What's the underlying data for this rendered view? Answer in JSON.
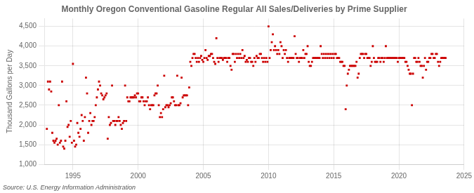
{
  "chart_data": {
    "type": "scatter",
    "title": "Monthly Oregon Conventional Gasoline Regular All Sales/Deliveries by Prime Supplier",
    "ylabel": "Thousand Gallons per Day",
    "source": "Source: U.S. Energy Information Administration",
    "color": "#cc0000",
    "marker": "square",
    "grid": true,
    "xlim": [
      1992.8,
      2025
    ],
    "xticks": [
      1995,
      2000,
      2005,
      2010,
      2015,
      2020,
      2025
    ],
    "ylim": [
      1000,
      4700
    ],
    "yticks": [
      {
        "value": 1000,
        "label": "1,000"
      },
      {
        "value": 1500,
        "label": "1,500"
      },
      {
        "value": 2000,
        "label": "2,000"
      },
      {
        "value": 2500,
        "label": "2,500"
      },
      {
        "value": 3000,
        "label": "3,000"
      },
      {
        "value": 3500,
        "label": "3,500"
      },
      {
        "value": 4000,
        "label": "4,000"
      },
      {
        "value": 4500,
        "label": "4,500"
      }
    ],
    "x": [
      1993,
      1993.083333,
      1993.166667,
      1993.25,
      1993.333333,
      1993.416667,
      1993.5,
      1993.583333,
      1993.666667,
      1993.75,
      1993.833333,
      1993.916667,
      1994,
      1994.083333,
      1994.166667,
      1994.25,
      1994.333333,
      1994.416667,
      1994.5,
      1994.583333,
      1994.666667,
      1994.75,
      1994.833333,
      1994.916667,
      1995,
      1995.083333,
      1995.166667,
      1995.25,
      1995.333333,
      1995.416667,
      1995.5,
      1995.583333,
      1995.666667,
      1995.75,
      1995.833333,
      1995.916667,
      1996,
      1996.083333,
      1996.166667,
      1996.25,
      1996.333333,
      1996.416667,
      1996.5,
      1996.583333,
      1996.666667,
      1996.75,
      1996.833333,
      1996.916667,
      1997,
      1997.083333,
      1997.166667,
      1997.25,
      1997.333333,
      1997.416667,
      1997.5,
      1997.583333,
      1997.666667,
      1997.75,
      1997.833333,
      1997.916667,
      1998,
      1998.083333,
      1998.166667,
      1998.25,
      1998.333333,
      1998.416667,
      1998.5,
      1998.583333,
      1998.666667,
      1998.75,
      1998.833333,
      1998.916667,
      1999,
      1999.083333,
      1999.166667,
      1999.25,
      1999.333333,
      1999.416667,
      1999.5,
      1999.583333,
      1999.666667,
      1999.75,
      1999.833333,
      1999.916667,
      2000,
      2000.083333,
      2000.166667,
      2000.25,
      2000.333333,
      2000.416667,
      2000.5,
      2000.583333,
      2000.666667,
      2000.75,
      2000.833333,
      2000.916667,
      2001,
      2001.083333,
      2001.166667,
      2001.25,
      2001.333333,
      2001.416667,
      2001.5,
      2001.583333,
      2001.666667,
      2001.75,
      2001.833333,
      2001.916667,
      2002,
      2002.083333,
      2002.166667,
      2002.25,
      2002.333333,
      2002.416667,
      2002.5,
      2002.583333,
      2002.666667,
      2002.75,
      2002.833333,
      2002.916667,
      2003,
      2003.083333,
      2003.166667,
      2003.25,
      2003.333333,
      2003.416667,
      2003.5,
      2003.583333,
      2003.666667,
      2003.75,
      2003.833333,
      2003.916667,
      2004,
      2004.083333,
      2004.166667,
      2004.25,
      2004.333333,
      2004.416667,
      2004.5,
      2004.583333,
      2004.666667,
      2004.75,
      2004.833333,
      2004.916667,
      2005,
      2005.083333,
      2005.166667,
      2005.25,
      2005.333333,
      2005.416667,
      2005.5,
      2005.583333,
      2005.666667,
      2005.75,
      2005.833333,
      2005.916667,
      2006,
      2006.083333,
      2006.166667,
      2006.25,
      2006.333333,
      2006.416667,
      2006.5,
      2006.583333,
      2006.666667,
      2006.75,
      2006.833333,
      2006.916667,
      2007,
      2007.083333,
      2007.166667,
      2007.25,
      2007.333333,
      2007.416667,
      2007.5,
      2007.583333,
      2007.666667,
      2007.75,
      2007.833333,
      2007.916667,
      2008,
      2008.083333,
      2008.166667,
      2008.25,
      2008.333333,
      2008.416667,
      2008.5,
      2008.583333,
      2008.666667,
      2008.75,
      2008.833333,
      2008.916667,
      2009,
      2009.083333,
      2009.166667,
      2009.25,
      2009.333333,
      2009.416667,
      2009.5,
      2009.583333,
      2009.666667,
      2009.75,
      2009.833333,
      2009.916667,
      2010,
      2010.083333,
      2010.166667,
      2010.25,
      2010.333333,
      2010.416667,
      2010.5,
      2010.583333,
      2010.666667,
      2010.75,
      2010.833333,
      2010.916667,
      2011,
      2011.083333,
      2011.166667,
      2011.25,
      2011.333333,
      2011.416667,
      2011.5,
      2011.583333,
      2011.666667,
      2011.75,
      2011.833333,
      2011.916667,
      2012,
      2012.083333,
      2012.166667,
      2012.25,
      2012.333333,
      2012.416667,
      2012.5,
      2012.583333,
      2012.666667,
      2012.75,
      2012.833333,
      2012.916667,
      2013,
      2013.083333,
      2013.166667,
      2013.25,
      2013.333333,
      2013.416667,
      2013.5,
      2013.583333,
      2013.666667,
      2013.75,
      2013.833333,
      2013.916667,
      2014,
      2014.083333,
      2014.166667,
      2014.25,
      2014.333333,
      2014.416667,
      2014.5,
      2014.583333,
      2014.666667,
      2014.75,
      2014.833333,
      2014.916667,
      2015,
      2015.083333,
      2015.166667,
      2015.25,
      2015.333333,
      2015.416667,
      2015.5,
      2015.583333,
      2015.666667,
      2015.75,
      2015.833333,
      2015.916667,
      2016,
      2016.083333,
      2016.166667,
      2016.25,
      2016.333333,
      2016.416667,
      2016.5,
      2016.583333,
      2016.666667,
      2016.75,
      2016.833333,
      2016.916667,
      2017,
      2017.083333,
      2017.166667,
      2017.25,
      2017.333333,
      2017.416667,
      2017.5,
      2017.583333,
      2017.666667,
      2017.75,
      2017.833333,
      2017.916667,
      2018,
      2018.083333,
      2018.166667,
      2018.25,
      2018.333333,
      2018.416667,
      2018.5,
      2018.583333,
      2018.666667,
      2018.75,
      2018.833333,
      2018.916667,
      2019,
      2019.083333,
      2019.166667,
      2019.25,
      2019.333333,
      2019.416667,
      2019.5,
      2019.583333,
      2019.666667,
      2019.75,
      2019.833333,
      2019.916667,
      2020,
      2020.083333,
      2020.166667,
      2020.25,
      2020.333333,
      2020.416667,
      2020.5,
      2020.583333,
      2020.666667,
      2020.75,
      2020.833333,
      2020.916667,
      2021,
      2021.083333,
      2021.166667,
      2021.25,
      2021.333333,
      2021.416667,
      2021.5,
      2021.583333,
      2021.666667,
      2021.75,
      2021.833333,
      2021.916667,
      2022,
      2022.083333,
      2022.166667,
      2022.25,
      2022.333333,
      2022.416667,
      2022.5,
      2022.583333,
      2022.666667,
      2022.75,
      2022.833333,
      2022.916667,
      2023,
      2023.083333,
      2023.166667,
      2023.25,
      2023.333333,
      2023.416667,
      2023.5,
      2023.583333
    ],
    "values": [
      1900,
      3100,
      2900,
      3100,
      2850,
      1800,
      1600,
      1550,
      1600,
      1650,
      1500,
      2500,
      1550,
      1600,
      3100,
      1450,
      1400,
      1600,
      2600,
      1950,
      2000,
      1700,
      2100,
      1550,
      3550,
      1600,
      1450,
      1500,
      2050,
      1800,
      1700,
      1900,
      2250,
      2100,
      1600,
      2200,
      3200,
      2800,
      1800,
      2100,
      2300,
      2000,
      2100,
      2100,
      2200,
      2500,
      2700,
      2900,
      3100,
      3000,
      2800,
      2750,
      2650,
      2700,
      2750,
      2800,
      1650,
      2200,
      2000,
      2050,
      3000,
      2100,
      2100,
      2000,
      2100,
      2100,
      2200,
      2100,
      2000,
      1900,
      2050,
      2100,
      3000,
      2100,
      2700,
      2600,
      2600,
      2700,
      2700,
      2700,
      2700,
      2750,
      2700,
      2800,
      2800,
      2600,
      2600,
      2700,
      2700,
      2600,
      2500,
      2600,
      2600,
      2700,
      2500,
      2400,
      2500,
      2500,
      2500,
      2750,
      2800,
      2800,
      3000,
      2500,
      2200,
      2300,
      2200,
      2400,
      3250,
      2450,
      2500,
      2500,
      2450,
      2500,
      2550,
      2700,
      2700,
      2600,
      2500,
      2500,
      3250,
      2500,
      2500,
      2550,
      3200,
      2700,
      2750,
      2750,
      2750,
      2750,
      2500,
      2950,
      3600,
      3500,
      3700,
      3800,
      3800,
      3700,
      3600,
      3700,
      3600,
      3700,
      3750,
      3650,
      3600,
      3700,
      3900,
      3700,
      3650,
      3750,
      3750,
      3800,
      3800,
      3700,
      3600,
      3550,
      4200,
      3700,
      3600,
      3700,
      3700,
      3700,
      3650,
      3700,
      3700,
      3700,
      3600,
      3700,
      3700,
      3500,
      3400,
      3800,
      3800,
      3600,
      3800,
      3700,
      3800,
      3700,
      3800,
      3700,
      3900,
      3700,
      3750,
      3600,
      3650,
      3600,
      3700,
      3700,
      3600,
      3600,
      3500,
      3700,
      3600,
      3750,
      3700,
      3700,
      3800,
      3800,
      3700,
      3600,
      3700,
      3600,
      3700,
      3600,
      4500,
      3700,
      3900,
      4100,
      4300,
      3900,
      4000,
      3900,
      3800,
      3900,
      3800,
      4100,
      4000,
      3700,
      3900,
      3800,
      3900,
      3700,
      3600,
      3700,
      3700,
      3700,
      3700,
      3700,
      4250,
      3800,
      3700,
      3700,
      3600,
      3700,
      3700,
      3700,
      3900,
      3700,
      3800,
      3800,
      4000,
      3600,
      3500,
      3500,
      3600,
      3700,
      3700,
      3700,
      3700,
      3700,
      3700,
      3700,
      4000,
      3800,
      3700,
      3800,
      3700,
      3800,
      3700,
      3800,
      3700,
      3800,
      3700,
      3800,
      3700,
      3800,
      3800,
      3700,
      3700,
      3700,
      3600,
      3600,
      3600,
      3500,
      3500,
      2400,
      3000,
      3300,
      3400,
      3500,
      3500,
      3500,
      3500,
      3500,
      3500,
      3600,
      3200,
      3300,
      3700,
      3800,
      3800,
      3800,
      3700,
      3800,
      3800,
      3700,
      3700,
      3700,
      3500,
      3600,
      4000,
      3700,
      3600,
      3600,
      3600,
      3700,
      3700,
      3600,
      3700,
      3700,
      3600,
      3700,
      4000,
      3700,
      3700,
      3700,
      3700,
      3700,
      3700,
      3700,
      3700,
      3700,
      3700,
      3600,
      3700,
      3700,
      3700,
      3700,
      3700,
      3700,
      3600,
      3600,
      3500,
      3400,
      3300,
      3300,
      2500,
      3300,
      3700,
      3700,
      3600,
      3600,
      3700,
      3600,
      3500,
      3500,
      3200,
      3500,
      3700,
      3400,
      3600,
      3600,
      3700,
      3700,
      3800,
      3800,
      3700,
      3700,
      3800,
      3800,
      3600,
      3500,
      3600,
      3700,
      3700,
      3700,
      3700,
      3700
    ]
  }
}
